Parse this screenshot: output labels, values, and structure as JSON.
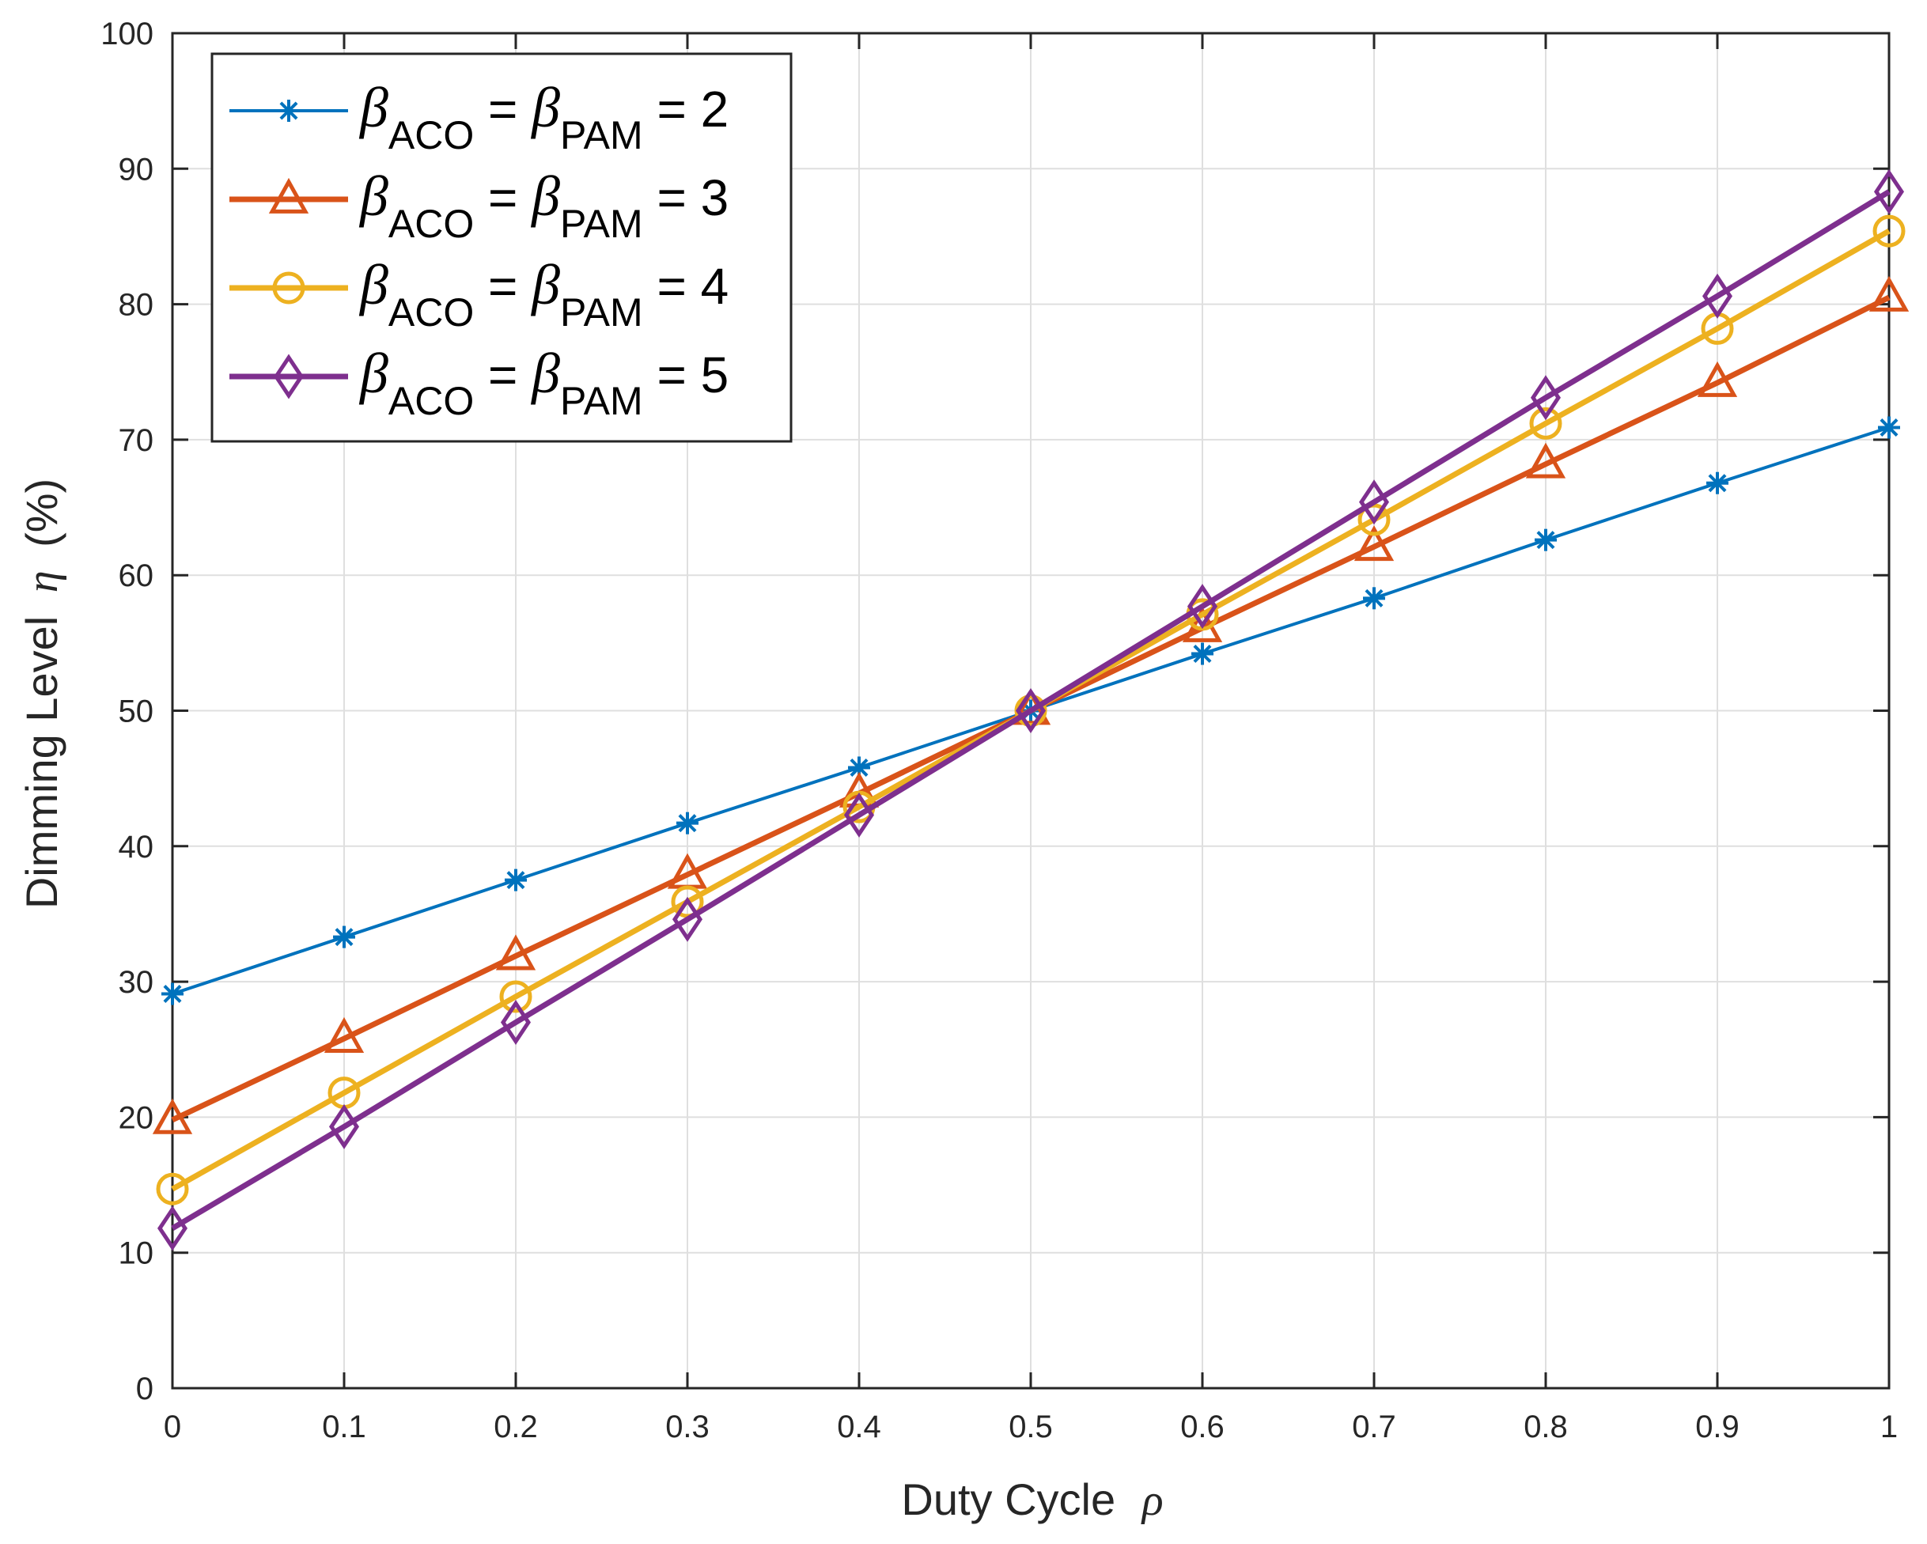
{
  "chart_data": {
    "type": "line",
    "title": "",
    "xlabel": {
      "text": "Duty Cycle",
      "symbol": "ρ"
    },
    "ylabel": {
      "text": "Dimming Level",
      "symbol": "η",
      "unit": "(%)"
    },
    "xlim": [
      0,
      1
    ],
    "ylim": [
      0,
      100
    ],
    "xticks": [
      0,
      0.1,
      0.2,
      0.3,
      0.4,
      0.5,
      0.6,
      0.7,
      0.8,
      0.9,
      1
    ],
    "xtick_labels": [
      "0",
      "0.1",
      "0.2",
      "0.3",
      "0.4",
      "0.5",
      "0.6",
      "0.7",
      "0.8",
      "0.9",
      "1"
    ],
    "yticks": [
      0,
      10,
      20,
      30,
      40,
      50,
      60,
      70,
      80,
      90,
      100
    ],
    "ytick_labels": [
      "0",
      "10",
      "20",
      "30",
      "40",
      "50",
      "60",
      "70",
      "80",
      "90",
      "100"
    ],
    "grid": true,
    "legend_position": "top-left",
    "x": [
      0,
      0.1,
      0.2,
      0.3,
      0.4,
      0.5,
      0.6,
      0.7,
      0.8,
      0.9,
      1
    ],
    "series": [
      {
        "name": "β_ACO = β_PAM = 2",
        "legend": {
          "sym1": "β",
          "sub1": "ACO",
          "eq": " = ",
          "sym2": "β",
          "sub2": "PAM",
          "tail": " = 2"
        },
        "color": "#0072BD",
        "marker": "asterisk",
        "values": [
          29.1,
          33.3,
          37.5,
          41.7,
          45.8,
          50.0,
          54.2,
          58.3,
          62.6,
          66.8,
          70.9
        ]
      },
      {
        "name": "β_ACO = β_PAM = 3",
        "legend": {
          "sym1": "β",
          "sub1": "ACO",
          "eq": " = ",
          "sym2": "β",
          "sub2": "PAM",
          "tail": " = 3"
        },
        "color": "#D95319",
        "marker": "triangle",
        "values": [
          19.8,
          25.8,
          31.9,
          37.9,
          43.9,
          50.0,
          56.1,
          62.1,
          68.2,
          74.2,
          80.5
        ]
      },
      {
        "name": "β_ACO = β_PAM = 4",
        "legend": {
          "sym1": "β",
          "sub1": "ACO",
          "eq": " = ",
          "sym2": "β",
          "sub2": "PAM",
          "tail": " = 4"
        },
        "color": "#EDB120",
        "marker": "circle",
        "values": [
          14.7,
          21.8,
          28.9,
          35.9,
          42.9,
          50.0,
          57.1,
          64.1,
          71.2,
          78.2,
          85.4
        ]
      },
      {
        "name": "β_ACO = β_PAM = 5",
        "legend": {
          "sym1": "β",
          "sub1": "ACO",
          "eq": " = ",
          "sym2": "β",
          "sub2": "PAM",
          "tail": " = 5"
        },
        "color": "#7E2F8E",
        "marker": "diamond",
        "values": [
          11.8,
          19.3,
          27.0,
          34.6,
          42.3,
          50.0,
          57.7,
          65.4,
          73.1,
          80.6,
          88.3
        ]
      }
    ]
  }
}
